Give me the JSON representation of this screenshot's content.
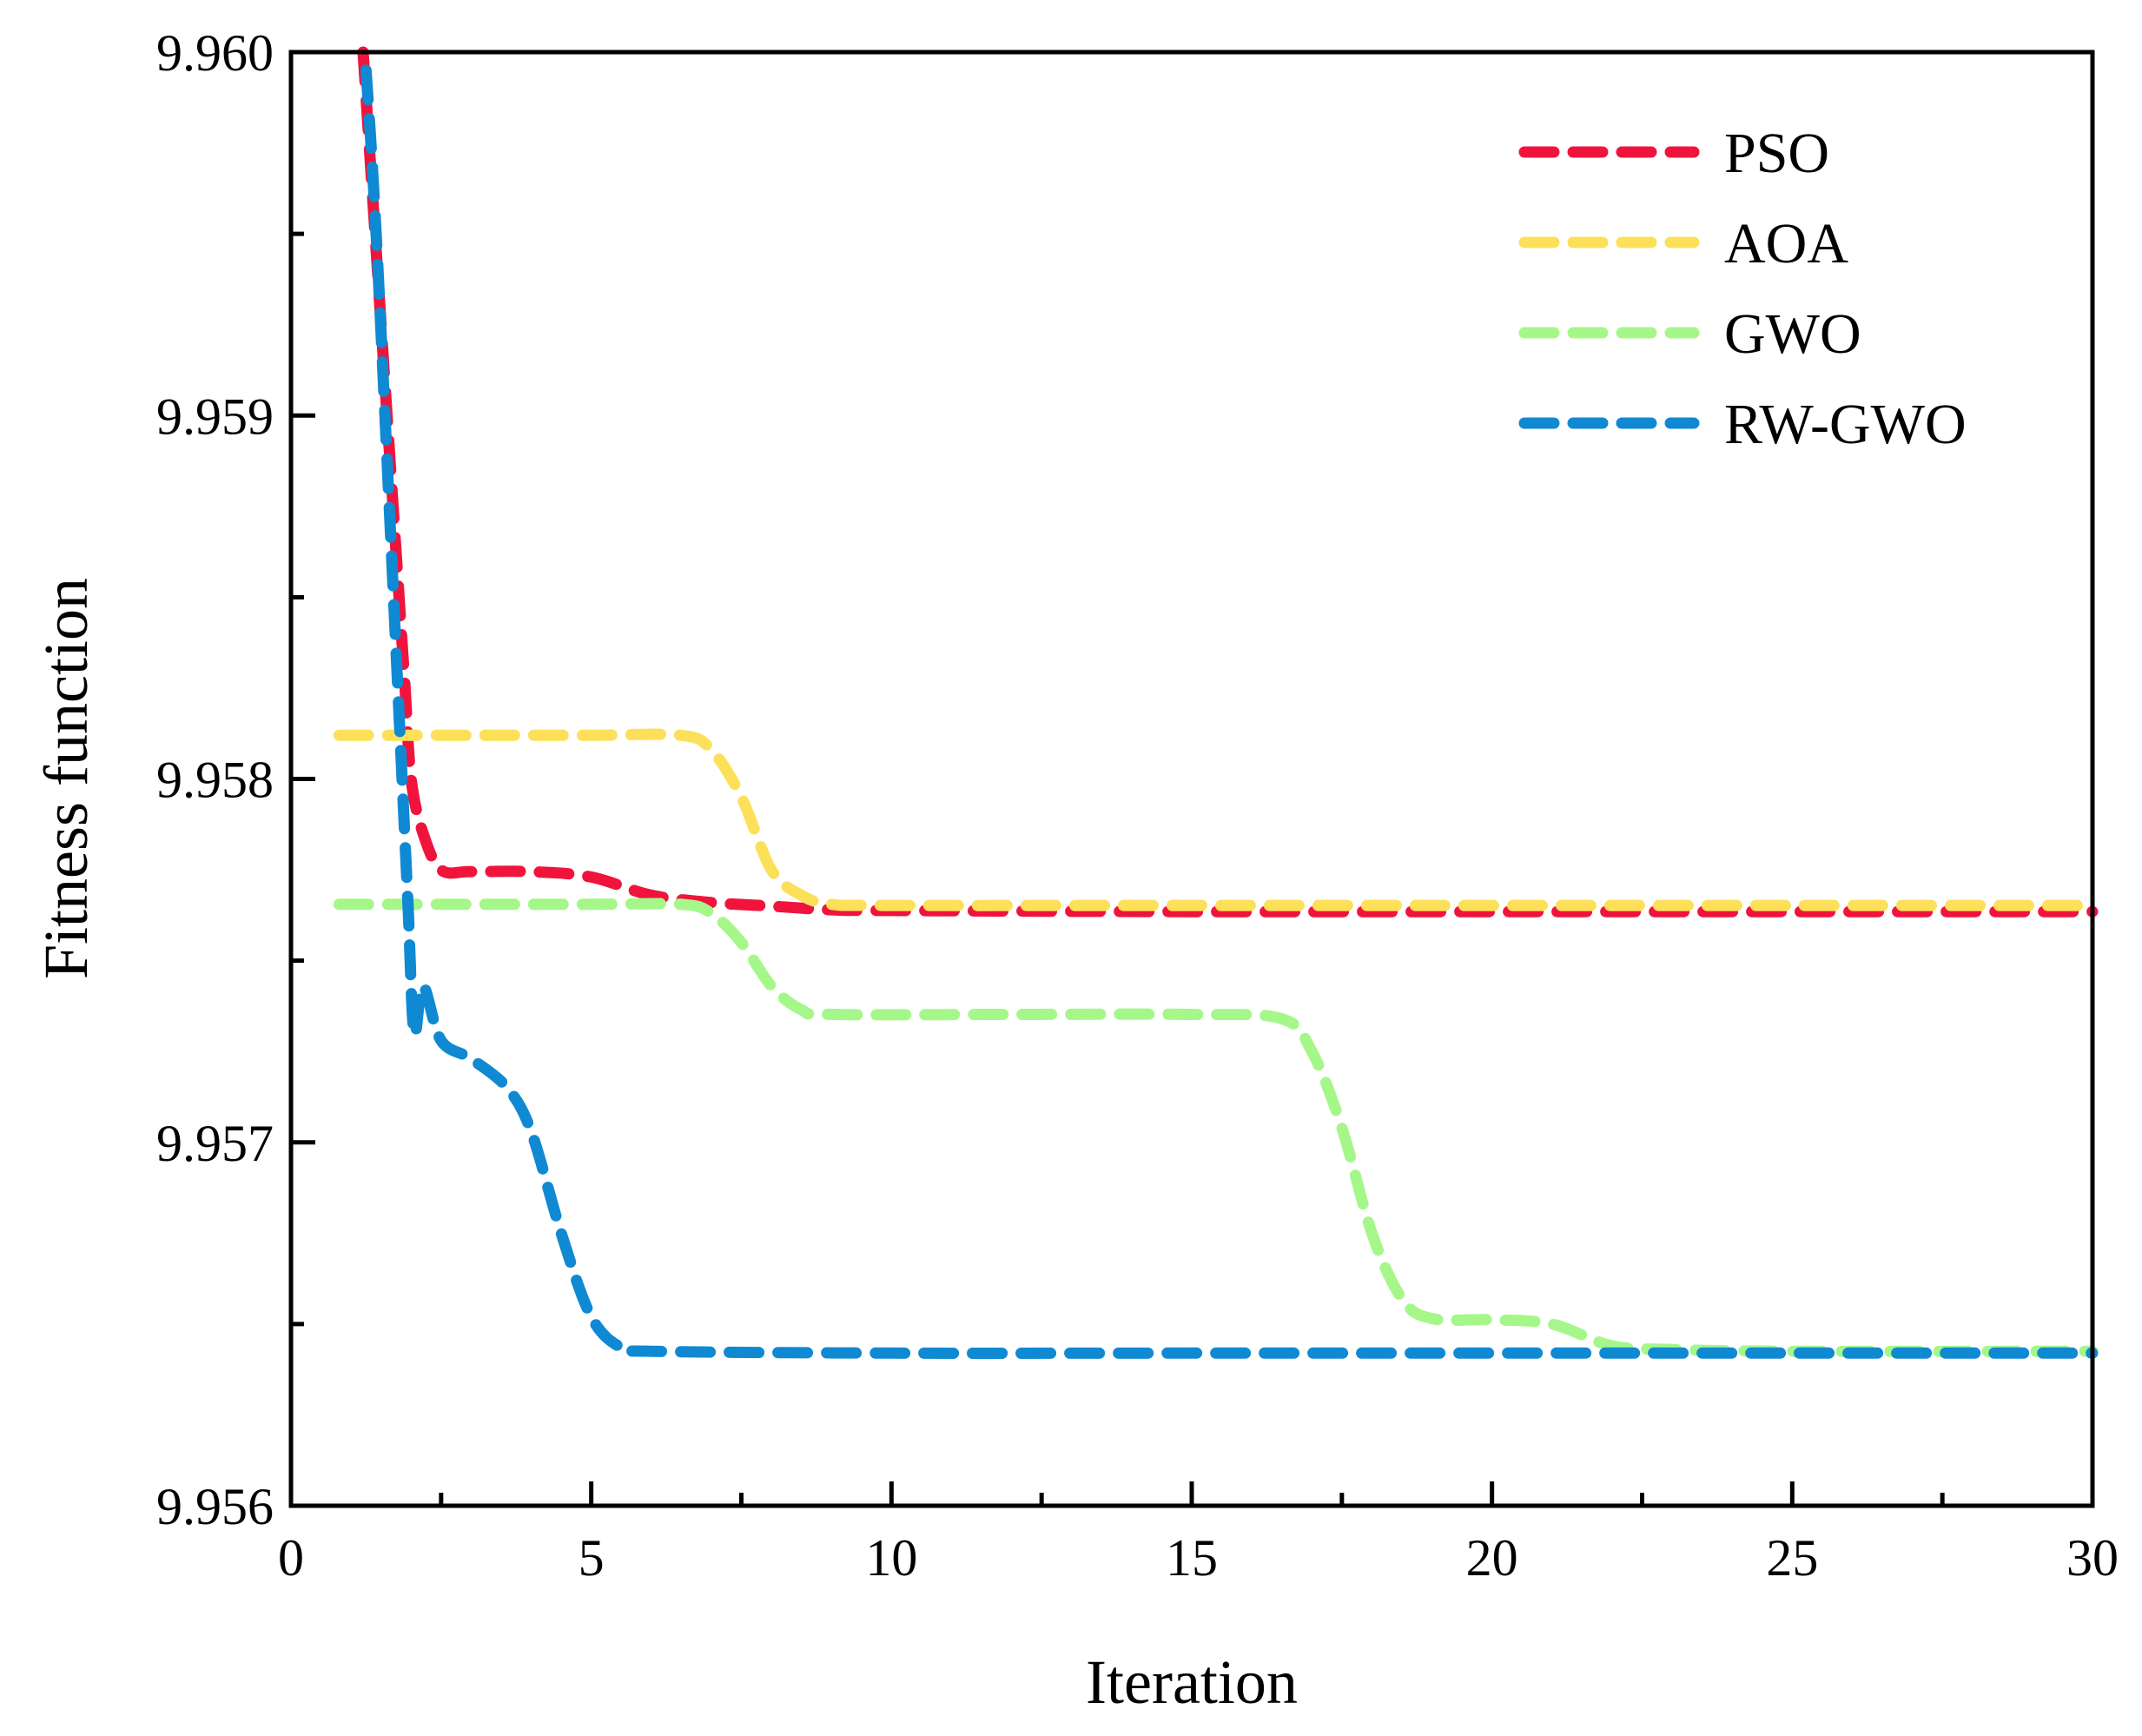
{
  "chart_data": {
    "type": "line",
    "title": "",
    "xlabel": "Iteration",
    "ylabel": "Fitness function",
    "xlim": [
      0,
      30
    ],
    "ylim": [
      9.956,
      9.96
    ],
    "xticks": [
      0,
      5,
      10,
      15,
      20,
      25,
      30
    ],
    "xtick_labels": [
      "0",
      "5",
      "10",
      "15",
      "20",
      "25",
      "30"
    ],
    "yticks": [
      9.956,
      9.957,
      9.958,
      9.959,
      9.96
    ],
    "ytick_labels": [
      "9.956",
      "9.957",
      "9.958",
      "9.959",
      "9.960"
    ],
    "legend_position": "top-right",
    "grid": false,
    "series": [
      {
        "name": "PSO",
        "color": "#f0143c",
        "x": [
          1.2,
          1.3,
          1.4,
          1.5,
          1.6,
          1.7,
          1.8,
          1.9,
          2.0,
          2.2,
          2.5,
          3.0,
          4.0,
          5.0,
          6.0,
          7.0,
          8.0,
          9.0,
          10,
          15,
          20,
          25,
          30
        ],
        "y": [
          9.96,
          9.95975,
          9.9595,
          9.95925,
          9.959,
          9.95875,
          9.9585,
          9.95825,
          9.958,
          9.95785,
          9.95775,
          9.957745,
          9.957745,
          9.95773,
          9.95768,
          9.95766,
          9.95765,
          9.95764,
          9.957638,
          9.957635,
          9.957635,
          9.957635,
          9.957635
        ]
      },
      {
        "name": "AOA",
        "color": "#fde05a",
        "x": [
          0.8,
          3,
          5,
          6.5,
          7.0,
          7.5,
          8.0,
          8.5,
          9.0,
          10,
          15,
          20,
          25,
          30
        ],
        "y": [
          9.95812,
          9.95812,
          9.95812,
          9.95812,
          9.95808,
          9.95795,
          9.95775,
          9.95768,
          9.957655,
          9.957652,
          9.957652,
          9.957652,
          9.957652,
          9.957652
        ]
      },
      {
        "name": "GWO",
        "color": "#a6f78a",
        "x": [
          0.8,
          3,
          5,
          6.5,
          7.0,
          7.5,
          8.0,
          8.5,
          9,
          12,
          15,
          16.5,
          17.0,
          17.5,
          18.0,
          18.5,
          19.0,
          20,
          21,
          22,
          23,
          25,
          30
        ],
        "y": [
          9.957655,
          9.957655,
          9.957655,
          9.957655,
          9.95763,
          9.95755,
          9.95743,
          9.957365,
          9.957352,
          9.957352,
          9.957352,
          9.95734,
          9.95725,
          9.95704,
          9.95675,
          9.95657,
          9.956515,
          9.956512,
          9.9565,
          9.95644,
          9.95643,
          9.956425,
          9.956425
        ]
      },
      {
        "name": "RW-GWO",
        "color": "#1089d3",
        "x": [
          1.25,
          1.35,
          1.45,
          1.55,
          1.65,
          1.75,
          1.85,
          1.95,
          2.05,
          2.2,
          2.5,
          3.0,
          3.6,
          4.0,
          4.5,
          5.0,
          5.5,
          6.0,
          10,
          15,
          20,
          25,
          30
        ],
        "y": [
          9.95995,
          9.9597,
          9.9594,
          9.95905,
          9.9587,
          9.95835,
          9.958,
          9.95765,
          9.9573,
          9.95743,
          9.95728,
          9.95723,
          9.95715,
          9.95703,
          9.95675,
          9.95652,
          9.956435,
          9.956425,
          9.95642,
          9.95642,
          9.95642,
          9.95642,
          9.95642
        ]
      }
    ]
  }
}
